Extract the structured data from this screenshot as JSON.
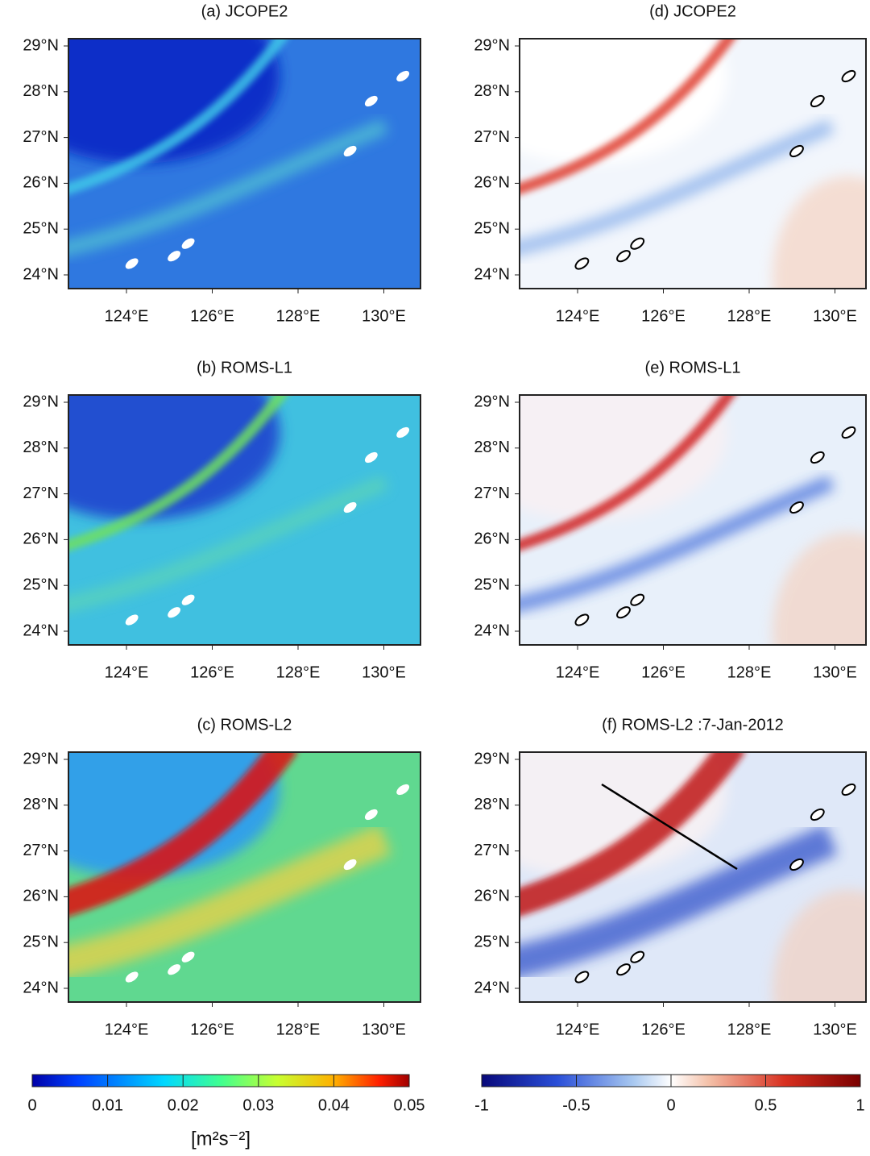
{
  "panels": [
    {
      "title": "(a) JCOPE2"
    },
    {
      "title": "(b) ROMS-L1"
    },
    {
      "title": "(c) ROMS-L2"
    },
    {
      "title": "(d) JCOPE2"
    },
    {
      "title": "(e) ROMS-L1"
    },
    {
      "title": "(f) ROMS-L2 :7-Jan-2012"
    }
  ],
  "lat_labels": [
    "29°N",
    "28°N",
    "27°N",
    "26°N",
    "25°N",
    "24°N"
  ],
  "lon_labels": [
    "124°E",
    "126°E",
    "128°E",
    "130°E"
  ],
  "colorbars": [
    {
      "range": [
        0,
        0.05
      ],
      "ticks": [
        0,
        0.01,
        0.02,
        0.03,
        0.04,
        0.05
      ],
      "unit": "[m²s⁻²]"
    },
    {
      "range": [
        -1,
        1
      ],
      "ticks": [
        -1,
        -0.5,
        0,
        0.5,
        1
      ]
    }
  ]
}
